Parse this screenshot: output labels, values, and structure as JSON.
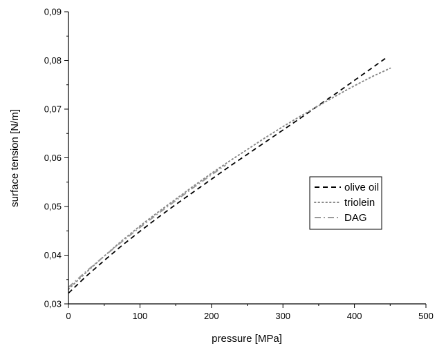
{
  "chart_data": {
    "type": "line",
    "title": "",
    "xlabel": "pressure [MPa]",
    "ylabel": "surface tension [N/m]",
    "xlim": [
      0,
      500
    ],
    "ylim": [
      0.03,
      0.09
    ],
    "xticks": [
      0,
      100,
      200,
      300,
      400,
      500
    ],
    "xtick_labels": [
      "0",
      "100",
      "200",
      "300",
      "400",
      "500"
    ],
    "yticks": [
      0.03,
      0.04,
      0.05,
      0.06,
      0.07,
      0.08,
      0.09
    ],
    "ytick_labels": [
      "0,03",
      "0,04",
      "0,05",
      "0,06",
      "0,07",
      "0,08",
      "0,09"
    ],
    "grid": false,
    "legend_position": "right",
    "series": [
      {
        "name": "olive oil",
        "line_style": "dash",
        "color": "#000000",
        "x": [
          0,
          25,
          50,
          75,
          100,
          125,
          150,
          175,
          200,
          225,
          250,
          275,
          300,
          325,
          350,
          375,
          400,
          425,
          445
        ],
        "y": [
          0.0322,
          0.0357,
          0.0389,
          0.042,
          0.0449,
          0.0477,
          0.0504,
          0.053,
          0.0556,
          0.0582,
          0.0607,
          0.0632,
          0.0657,
          0.0682,
          0.0708,
          0.0733,
          0.0759,
          0.0785,
          0.0806
        ]
      },
      {
        "name": "triolein",
        "line_style": "dot",
        "color": "#888888",
        "x": [
          0,
          25,
          50,
          75,
          100,
          125,
          150,
          175,
          200,
          225,
          250,
          275,
          300,
          325,
          350,
          375,
          400,
          425,
          450
        ],
        "y": [
          0.033,
          0.0365,
          0.0398,
          0.043,
          0.046,
          0.0488,
          0.0515,
          0.0542,
          0.0568,
          0.0593,
          0.0617,
          0.0641,
          0.0664,
          0.0686,
          0.0707,
          0.0728,
          0.0748,
          0.0767,
          0.0784
        ]
      },
      {
        "name": "DAG",
        "line_style": "dashdot",
        "color": "#9a9a9a",
        "x": [
          0,
          25,
          50,
          75,
          100,
          125,
          150,
          175,
          200,
          220
        ],
        "y": [
          0.0334,
          0.0367,
          0.0398,
          0.0428,
          0.0457,
          0.0485,
          0.0512,
          0.0539,
          0.0565,
          0.0585
        ]
      }
    ]
  }
}
